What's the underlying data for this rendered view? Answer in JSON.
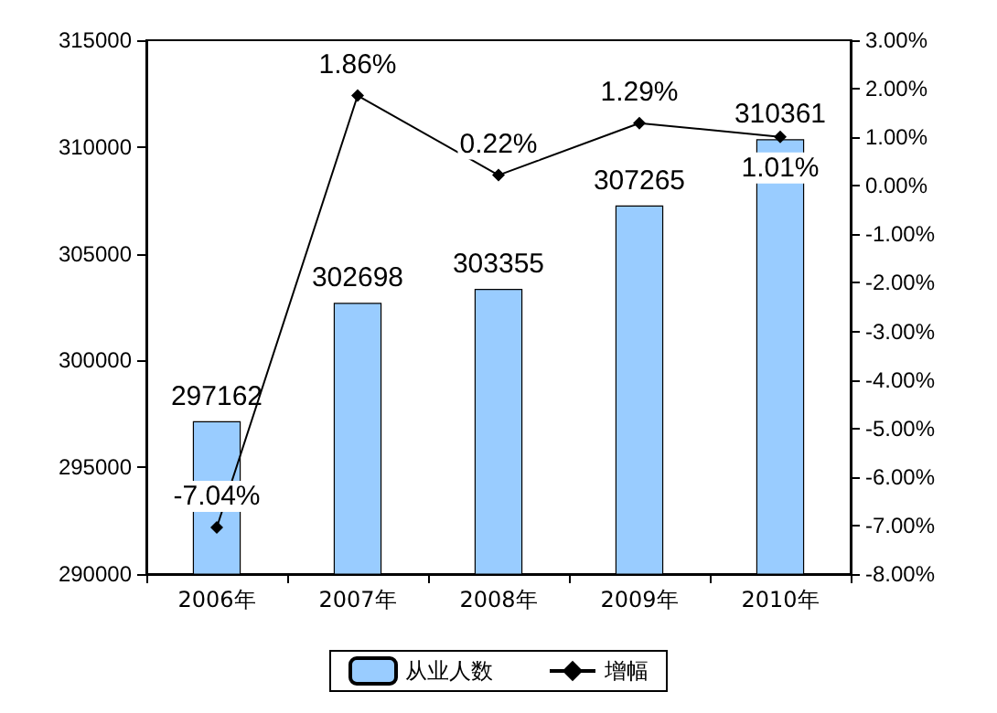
{
  "chart_data": {
    "type": "bar",
    "categories": [
      "2006年",
      "2007年",
      "2008年",
      "2009年",
      "2010年"
    ],
    "series": [
      {
        "name": "从业人数",
        "color": "#99ccff",
        "values": [
          297162,
          302698,
          303355,
          307265,
          310361
        ]
      },
      {
        "name": "增幅",
        "type": "line",
        "axis": "y2",
        "color": "#000000",
        "values": [
          -7.04,
          1.86,
          0.22,
          1.29,
          1.01
        ],
        "value_labels": [
          "-7.04%",
          "1.86%",
          "0.22%",
          "1.29%",
          "1.01%"
        ]
      }
    ],
    "ylim": [
      290000,
      315000
    ],
    "yticks": [
      290000,
      295000,
      300000,
      305000,
      310000,
      315000
    ],
    "y2lim": [
      -8,
      3
    ],
    "y2ticks": [
      {
        "value": -8,
        "label": "-8.00%"
      },
      {
        "value": -7,
        "label": "-7.00%"
      },
      {
        "value": -6,
        "label": "-6.00%"
      },
      {
        "value": -5,
        "label": "-5.00%"
      },
      {
        "value": -4,
        "label": "-4.00%"
      },
      {
        "value": -3,
        "label": "-3.00%"
      },
      {
        "value": -2,
        "label": "-2.00%"
      },
      {
        "value": -1,
        "label": "-1.00%"
      },
      {
        "value": 0,
        "label": "0.00%"
      },
      {
        "value": 1,
        "label": "1.00%"
      },
      {
        "value": 2,
        "label": "2.00%"
      },
      {
        "value": 3,
        "label": "3.00%"
      }
    ],
    "data_labels": true,
    "legend": "bottom",
    "grid": false,
    "marker": "diamond",
    "line_style": "solid"
  }
}
